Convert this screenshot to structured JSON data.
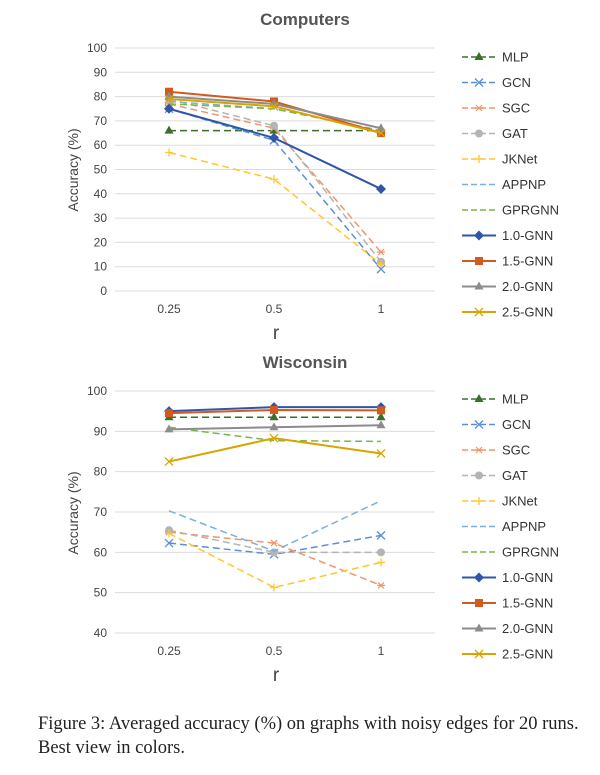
{
  "caption": "Figure 3: Averaged accuracy (%) on graphs with noisy edges for 20 runs. Best view in colors.",
  "chart_data": [
    {
      "type": "line",
      "title": "Computers",
      "xlabel": "r",
      "ylabel": "Accuracy (%)",
      "categories": [
        "0.25",
        "0.5",
        "1"
      ],
      "ylim": [
        0,
        100
      ],
      "yticks": [
        "0",
        "10",
        "20",
        "30",
        "40",
        "50",
        "60",
        "70",
        "80",
        "90",
        "100"
      ],
      "legend_position": "right",
      "series": [
        {
          "name": "MLP",
          "color": "#3a6e2a",
          "dash": "dashed",
          "marker": "triangle",
          "values": [
            66,
            66,
            66
          ]
        },
        {
          "name": "GCN",
          "color": "#5b8fd6",
          "dash": "dashed",
          "marker": "x",
          "values": [
            75,
            62,
            9
          ]
        },
        {
          "name": "SGC",
          "color": "#f0956a",
          "dash": "dashed",
          "marker": "star",
          "values": [
            77,
            67,
            16
          ]
        },
        {
          "name": "GAT",
          "color": "#b4b4b4",
          "dash": "dashed",
          "marker": "circle",
          "values": [
            79,
            68,
            12
          ]
        },
        {
          "name": "JKNet",
          "color": "#ffc72c",
          "dash": "dashed",
          "marker": "plus",
          "values": [
            57,
            46,
            11
          ]
        },
        {
          "name": "APPNP",
          "color": "#7aaede",
          "dash": "dashed",
          "marker": "none",
          "values": [
            78,
            75,
            66
          ]
        },
        {
          "name": "GPRGNN",
          "color": "#7ab648",
          "dash": "dashed",
          "marker": "none",
          "values": [
            77,
            75,
            66
          ]
        },
        {
          "name": "1.0-GNN",
          "color": "#2f56a8",
          "dash": "solid",
          "marker": "diamond",
          "values": [
            75,
            63,
            42
          ]
        },
        {
          "name": "1.5-GNN",
          "color": "#d25a1e",
          "dash": "solid",
          "marker": "square",
          "values": [
            82,
            78,
            65
          ]
        },
        {
          "name": "2.0-GNN",
          "color": "#8c8c8c",
          "dash": "solid",
          "marker": "triangle",
          "values": [
            80,
            77,
            67
          ]
        },
        {
          "name": "2.5-GNN",
          "color": "#d9a300",
          "dash": "solid",
          "marker": "x",
          "values": [
            79,
            76,
            65
          ]
        }
      ]
    },
    {
      "type": "line",
      "title": "Wisconsin",
      "xlabel": "r",
      "ylabel": "Accuracy (%)",
      "categories": [
        "0.25",
        "0.5",
        "1"
      ],
      "ylim": [
        40,
        100
      ],
      "yticks": [
        "40",
        "50",
        "60",
        "70",
        "80",
        "90",
        "100"
      ],
      "legend_position": "right",
      "series": [
        {
          "name": "MLP",
          "color": "#3a6e2a",
          "dash": "dashed",
          "marker": "triangle",
          "values": [
            93.5,
            93.5,
            93.5
          ]
        },
        {
          "name": "GCN",
          "color": "#5b8fd6",
          "dash": "dashed",
          "marker": "x",
          "values": [
            62.3,
            59.5,
            64.2
          ]
        },
        {
          "name": "SGC",
          "color": "#f0956a",
          "dash": "dashed",
          "marker": "star",
          "values": [
            65,
            62.3,
            51.8
          ]
        },
        {
          "name": "GAT",
          "color": "#b4b4b4",
          "dash": "dashed",
          "marker": "circle",
          "values": [
            65.5,
            60,
            60
          ]
        },
        {
          "name": "JKNet",
          "color": "#ffc72c",
          "dash": "dashed",
          "marker": "plus",
          "values": [
            64.7,
            51.3,
            57.5
          ]
        },
        {
          "name": "APPNP",
          "color": "#7aaede",
          "dash": "dashed",
          "marker": "none",
          "values": [
            70.3,
            60.3,
            72.8
          ]
        },
        {
          "name": "GPRGNN",
          "color": "#7ab648",
          "dash": "dashed",
          "marker": "none",
          "values": [
            91,
            87.7,
            87.5
          ]
        },
        {
          "name": "1.0-GNN",
          "color": "#2f56a8",
          "dash": "solid",
          "marker": "diamond",
          "values": [
            95,
            96,
            96
          ]
        },
        {
          "name": "1.5-GNN",
          "color": "#d25a1e",
          "dash": "solid",
          "marker": "square",
          "values": [
            94.5,
            95.3,
            95.2
          ]
        },
        {
          "name": "2.0-GNN",
          "color": "#8c8c8c",
          "dash": "solid",
          "marker": "triangle",
          "values": [
            90.5,
            91,
            91.5
          ]
        },
        {
          "name": "2.5-GNN",
          "color": "#d9a300",
          "dash": "solid",
          "marker": "x",
          "values": [
            82.5,
            88.3,
            84.5
          ]
        }
      ]
    }
  ]
}
